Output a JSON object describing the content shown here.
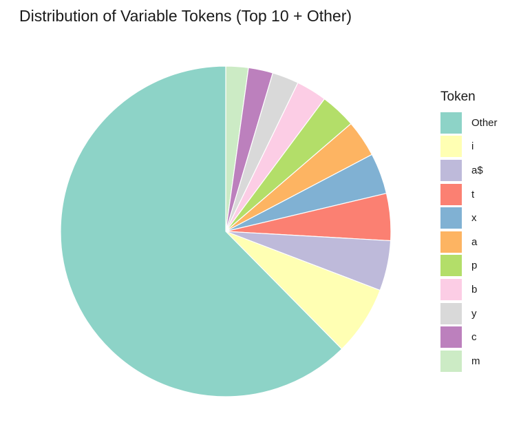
{
  "chart_data": {
    "type": "pie",
    "title": "Distribution of Variable Tokens (Top 10 + Other)",
    "legend": {
      "title": "Token",
      "position": "right"
    },
    "start": "12 o'clock",
    "direction": "clockwise",
    "slices": [
      {
        "name": "m",
        "value": 2.2,
        "color": "#CCEBC5"
      },
      {
        "name": "c",
        "value": 2.4,
        "color": "#BC80BD"
      },
      {
        "name": "y",
        "value": 2.6,
        "color": "#D9D9D9"
      },
      {
        "name": "b",
        "value": 3.0,
        "color": "#FCCDE5"
      },
      {
        "name": "p",
        "value": 3.5,
        "color": "#B3DE69"
      },
      {
        "name": "a",
        "value": 3.6,
        "color": "#FDB462"
      },
      {
        "name": "x",
        "value": 4.0,
        "color": "#80B1D3"
      },
      {
        "name": "t",
        "value": 4.6,
        "color": "#FB8072"
      },
      {
        "name": "a$",
        "value": 4.9,
        "color": "#BEBADA"
      },
      {
        "name": "i",
        "value": 6.8,
        "color": "#FFFFB3"
      },
      {
        "name": "Other",
        "value": 62.4,
        "color": "#8DD3C7"
      }
    ],
    "legend_order": [
      "Other",
      "i",
      "a$",
      "t",
      "x",
      "a",
      "p",
      "b",
      "y",
      "c",
      "m"
    ]
  }
}
